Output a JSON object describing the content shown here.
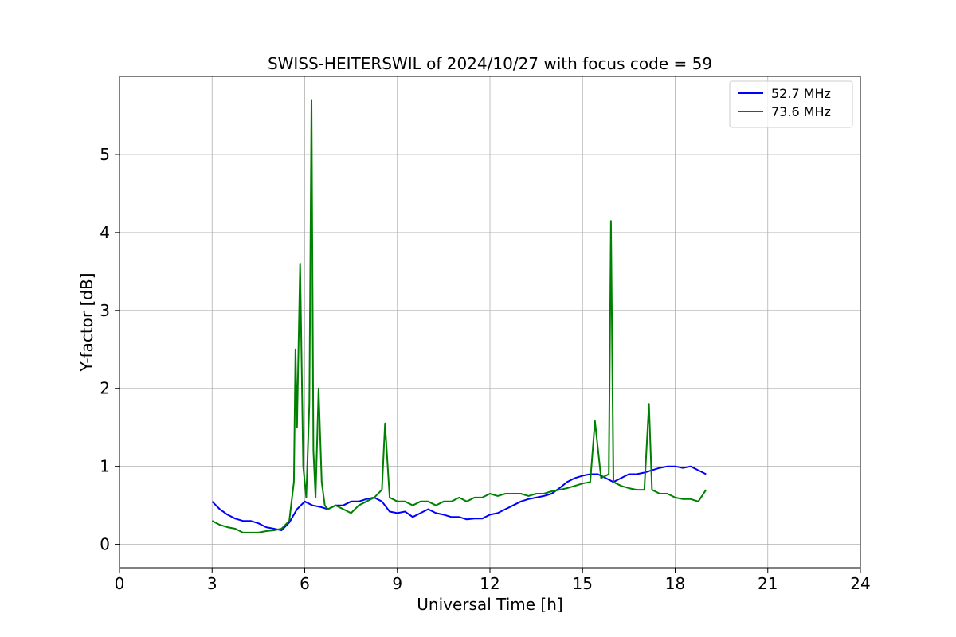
{
  "chart_data": {
    "type": "line",
    "title": "SWISS-HEITERSWIL of 2024/10/27 with focus code = 59",
    "xlabel": "Universal Time [h]",
    "ylabel": "Y-factor [dB]",
    "xlim": [
      0,
      24
    ],
    "ylim": [
      -0.3,
      6.0
    ],
    "xticks": [
      0,
      3,
      6,
      9,
      12,
      15,
      18,
      21,
      24
    ],
    "xtick_labels": [
      "0",
      "3",
      "6",
      "9",
      "12",
      "15",
      "18",
      "21",
      "24"
    ],
    "yticks": [
      0,
      1,
      2,
      3,
      4,
      5
    ],
    "ytick_labels": [
      "0",
      "1",
      "2",
      "3",
      "4",
      "5"
    ],
    "grid": true,
    "legend_position": "top-right",
    "series": [
      {
        "name": "  52.7 MHz",
        "color": "#0000ff",
        "x": [
          3.0,
          3.25,
          3.5,
          3.75,
          4.0,
          4.25,
          4.5,
          4.75,
          5.0,
          5.25,
          5.5,
          5.75,
          6.0,
          6.25,
          6.5,
          6.75,
          7.0,
          7.25,
          7.5,
          7.75,
          8.0,
          8.25,
          8.5,
          8.75,
          9.0,
          9.25,
          9.5,
          9.75,
          10.0,
          10.25,
          10.5,
          10.75,
          11.0,
          11.25,
          11.5,
          11.75,
          12.0,
          12.25,
          12.5,
          12.75,
          13.0,
          13.25,
          13.5,
          13.75,
          14.0,
          14.25,
          14.5,
          14.75,
          15.0,
          15.25,
          15.5,
          15.75,
          16.0,
          16.25,
          16.5,
          16.75,
          17.0,
          17.25,
          17.5,
          17.75,
          18.0,
          18.25,
          18.5,
          18.75,
          19.0
        ],
        "y": [
          0.55,
          0.45,
          0.38,
          0.33,
          0.3,
          0.3,
          0.27,
          0.22,
          0.2,
          0.18,
          0.28,
          0.45,
          0.55,
          0.5,
          0.48,
          0.45,
          0.5,
          0.5,
          0.55,
          0.55,
          0.58,
          0.6,
          0.55,
          0.42,
          0.4,
          0.42,
          0.35,
          0.4,
          0.45,
          0.4,
          0.38,
          0.35,
          0.35,
          0.32,
          0.33,
          0.33,
          0.38,
          0.4,
          0.45,
          0.5,
          0.55,
          0.58,
          0.6,
          0.62,
          0.65,
          0.72,
          0.8,
          0.85,
          0.88,
          0.9,
          0.9,
          0.85,
          0.8,
          0.85,
          0.9,
          0.9,
          0.92,
          0.95,
          0.98,
          1.0,
          1.0,
          0.98,
          1.0,
          0.95,
          0.9
        ]
      },
      {
        "name": "  73.6 MHz",
        "color": "#008000",
        "x": [
          3.0,
          3.25,
          3.5,
          3.75,
          4.0,
          4.25,
          4.5,
          4.75,
          5.0,
          5.25,
          5.5,
          5.65,
          5.7,
          5.75,
          5.85,
          5.95,
          6.05,
          6.15,
          6.22,
          6.28,
          6.35,
          6.45,
          6.55,
          6.65,
          6.75,
          7.0,
          7.25,
          7.5,
          7.75,
          8.0,
          8.25,
          8.5,
          8.6,
          8.75,
          9.0,
          9.25,
          9.5,
          9.75,
          10.0,
          10.25,
          10.5,
          10.75,
          11.0,
          11.25,
          11.5,
          11.75,
          12.0,
          12.25,
          12.5,
          12.75,
          13.0,
          13.25,
          13.5,
          13.75,
          14.0,
          14.25,
          14.5,
          14.75,
          15.0,
          15.25,
          15.4,
          15.6,
          15.85,
          15.92,
          16.0,
          16.25,
          16.5,
          16.75,
          17.0,
          17.15,
          17.25,
          17.5,
          17.75,
          18.0,
          18.25,
          18.5,
          18.75,
          19.0
        ],
        "y": [
          0.3,
          0.25,
          0.22,
          0.2,
          0.15,
          0.15,
          0.15,
          0.17,
          0.18,
          0.2,
          0.3,
          0.8,
          2.5,
          1.5,
          3.6,
          1.0,
          0.6,
          1.8,
          5.7,
          1.2,
          0.6,
          2.0,
          0.8,
          0.5,
          0.45,
          0.5,
          0.45,
          0.4,
          0.5,
          0.55,
          0.6,
          0.7,
          1.55,
          0.6,
          0.55,
          0.55,
          0.5,
          0.55,
          0.55,
          0.5,
          0.55,
          0.55,
          0.6,
          0.55,
          0.6,
          0.6,
          0.65,
          0.62,
          0.65,
          0.65,
          0.65,
          0.62,
          0.65,
          0.65,
          0.68,
          0.7,
          0.72,
          0.75,
          0.78,
          0.8,
          1.58,
          0.85,
          0.9,
          4.15,
          0.8,
          0.75,
          0.72,
          0.7,
          0.7,
          1.8,
          0.7,
          0.65,
          0.65,
          0.6,
          0.58,
          0.58,
          0.55,
          0.7
        ]
      }
    ]
  }
}
